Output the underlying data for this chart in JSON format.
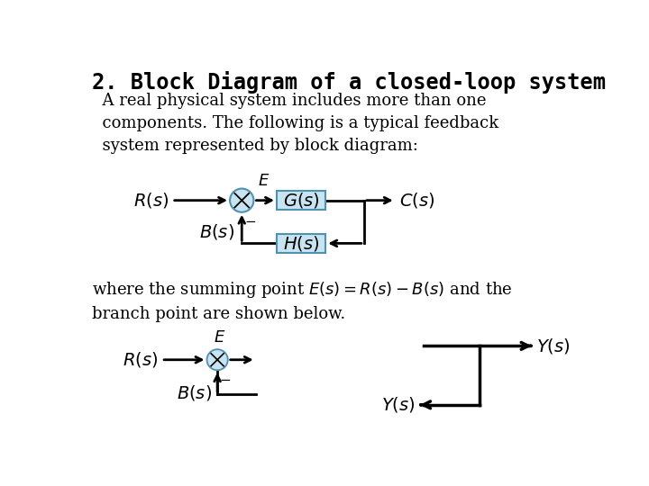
{
  "title": "2. Block Diagram of a closed-loop system",
  "body_text": "  A real physical system includes more than one\n  components. The following is a typical feedback\n  system represented by block diagram:",
  "mid_text": "where the summing point $E(s)=R(s)-B(s)$ and the\nbranch point are shown below.",
  "bg_color": "#ffffff",
  "box_fill": "#c8e4f0",
  "box_edge": "#5090b0",
  "line_color": "#000000",
  "circle_fill": "#c8e4f0",
  "circle_edge": "#5090b0",
  "lw_main": 2.0,
  "lw_thin": 1.5,
  "title_fontsize": 17,
  "body_fontsize": 13,
  "label_fontsize": 14
}
